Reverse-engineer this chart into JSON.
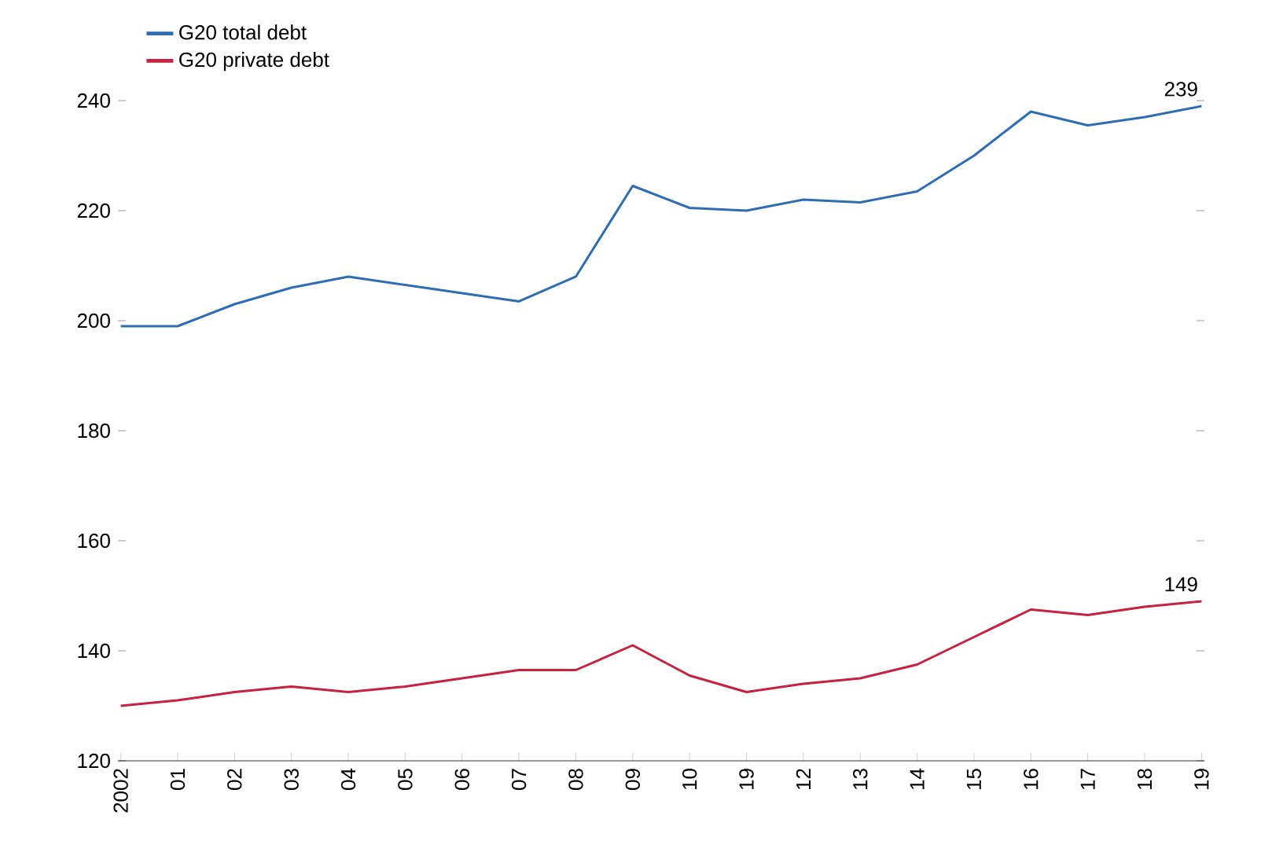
{
  "chart_data": {
    "type": "line",
    "categories": [
      "2002",
      "01",
      "02",
      "03",
      "04",
      "05",
      "06",
      "07",
      "08",
      "09",
      "10",
      "19",
      "12",
      "13",
      "14",
      "15",
      "16",
      "17",
      "18",
      "19"
    ],
    "series": [
      {
        "name": "G20 total debt",
        "color": "#2e6db4",
        "values": [
          199,
          199,
          203,
          206,
          208,
          206.5,
          205,
          203.5,
          208,
          224.5,
          220.5,
          220,
          222,
          221.5,
          223.5,
          230,
          238,
          235.5,
          237,
          239
        ]
      },
      {
        "name": "G20 private debt",
        "color": "#c8203f",
        "values": [
          130,
          131,
          132.5,
          133.5,
          132.5,
          133.5,
          135,
          136.5,
          136.5,
          141,
          135.5,
          132.5,
          134,
          135,
          137.5,
          142.5,
          147.5,
          146.5,
          148,
          149
        ]
      }
    ],
    "ylim": [
      120,
      240
    ],
    "yticks": [
      120,
      140,
      160,
      180,
      200,
      220,
      240
    ],
    "legend": "top left",
    "grid": false,
    "marker": "none",
    "line_style": "solid",
    "annotations": [
      "239",
      "149"
    ]
  }
}
